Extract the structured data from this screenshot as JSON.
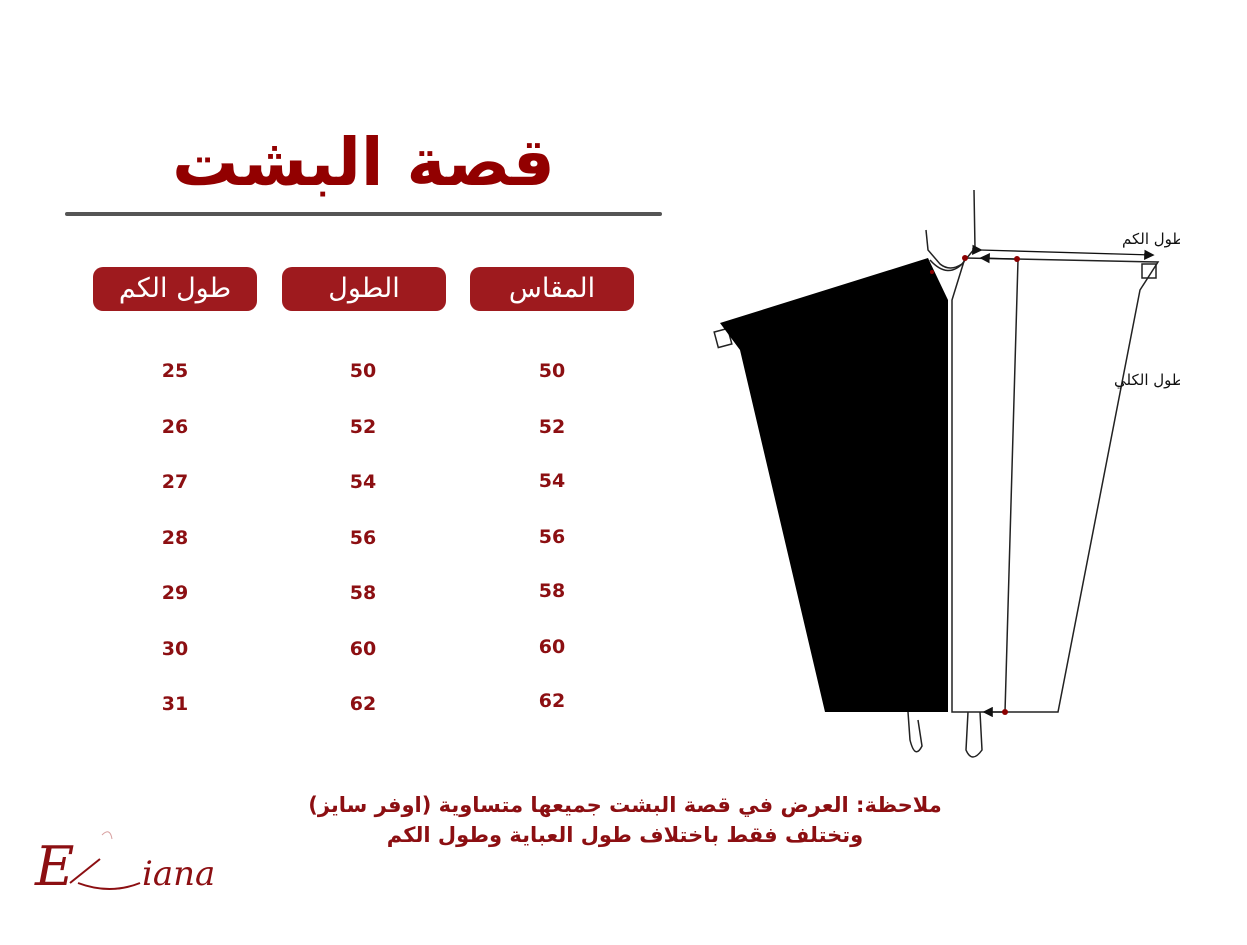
{
  "title": "قصة البشت",
  "headers": [
    "المقاس",
    "الطول",
    "طول الكم"
  ],
  "rows": [
    {
      "size": "50",
      "length": "50",
      "sleeve": "25"
    },
    {
      "size": "52",
      "length": "52",
      "sleeve": "26"
    },
    {
      "size": "54",
      "length": "54",
      "sleeve": "27"
    },
    {
      "size": "56",
      "length": "56",
      "sleeve": "28"
    },
    {
      "size": "58",
      "length": "58",
      "sleeve": "29"
    },
    {
      "size": "60",
      "length": "60",
      "sleeve": "30"
    },
    {
      "size": "62",
      "length": "62",
      "sleeve": "31"
    }
  ],
  "diagram": {
    "sleeve_label": "طول الكم",
    "total_length_label": "الطول الكلي"
  },
  "note": {
    "line1": "ملاحظة: العرض في قصة البشت جميعها متساوية (اوفر سايز)",
    "line2": "وتختلف فقط باختلاف طول العباية وطول الكم"
  },
  "logo": {
    "text": "Eliana"
  },
  "colors": {
    "brand": "#9e1a1e",
    "text": "#8c0f12"
  }
}
